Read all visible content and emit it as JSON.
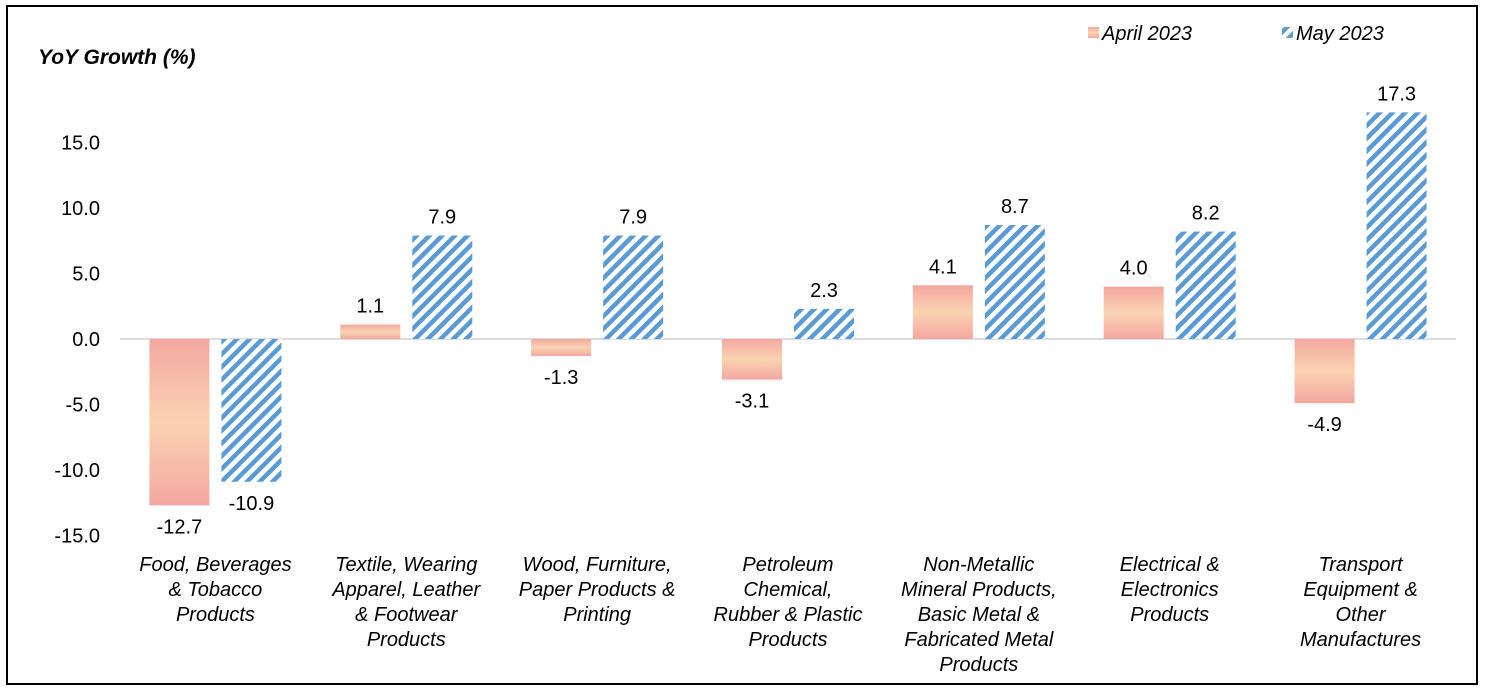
{
  "chart_data": {
    "type": "bar",
    "title": "",
    "ylabel": "YoY Growth (%)",
    "xlabel": "",
    "ylim": [
      -15,
      20
    ],
    "yticks": [
      -15,
      -10,
      -5,
      0,
      5,
      10,
      15
    ],
    "ytick_labels": [
      "-15.0",
      "-10.0",
      "-5.0",
      "0.0",
      "5.0",
      "10.0",
      "15.0"
    ],
    "legend_position": "top-right",
    "grid": false,
    "categories": [
      [
        "Food, Beverages",
        "& Tobacco",
        "Products"
      ],
      [
        "Textile, Wearing",
        "Apparel, Leather",
        "& Footwear",
        "Products"
      ],
      [
        "Wood, Furniture,",
        "Paper Products &",
        "Printing"
      ],
      [
        "Petroleum",
        "Chemical,",
        "Rubber & Plastic",
        "Products"
      ],
      [
        "Non-Metallic",
        "Mineral Products,",
        "Basic Metal &",
        "Fabricated Metal",
        "Products"
      ],
      [
        "Electrical &",
        "Electronics",
        "Products"
      ],
      [
        "Transport",
        "Equipment &",
        "Other",
        "Manufactures"
      ]
    ],
    "series": [
      {
        "name": "April 2023",
        "values": [
          -12.7,
          1.1,
          -1.3,
          -3.1,
          4.1,
          4.0,
          -4.9
        ],
        "labels": [
          "-12.7",
          "1.1",
          "-1.3",
          "-3.1",
          "4.1",
          "4.0",
          "-4.9"
        ],
        "color": "#f4a7a0",
        "color_mid": "#fad3b2",
        "style": "gradient"
      },
      {
        "name": "May 2023",
        "values": [
          -10.9,
          7.9,
          7.9,
          2.3,
          8.7,
          8.2,
          17.3
        ],
        "labels": [
          "-10.9",
          "7.9",
          "7.9",
          "2.3",
          "8.7",
          "8.2",
          "17.3"
        ],
        "color": "#5b9bd5",
        "style": "hatch"
      }
    ]
  }
}
